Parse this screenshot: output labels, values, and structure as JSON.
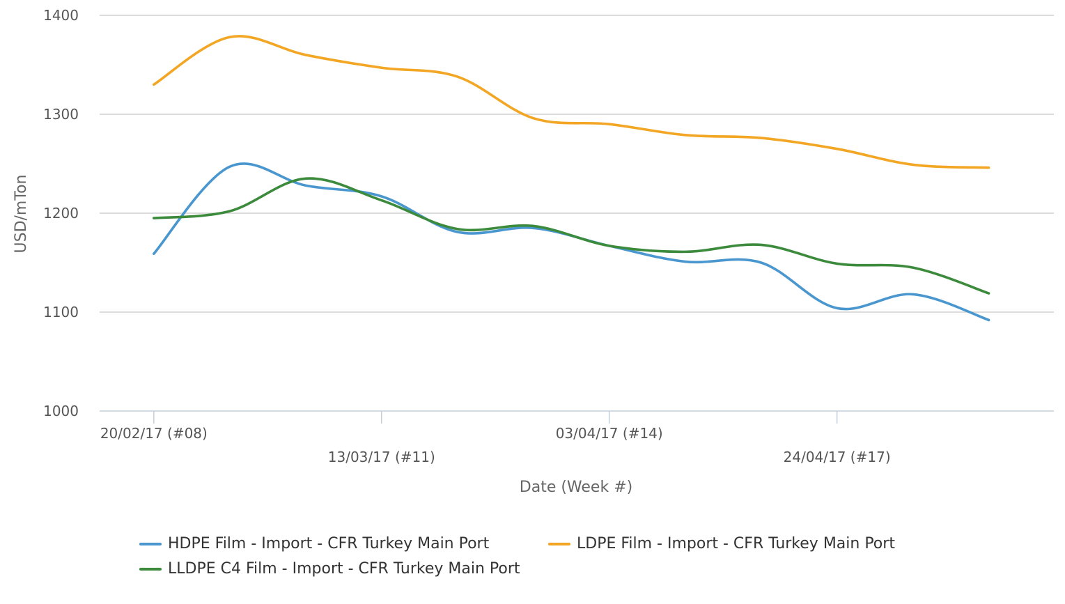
{
  "chart_data": {
    "type": "line",
    "title": "",
    "xlabel": "Date (Week #)",
    "ylabel": "USD/mTon",
    "ylim": [
      1000,
      1400
    ],
    "yticks": [
      "1000",
      "1100",
      "1200",
      "1300",
      "1400"
    ],
    "xlim": [
      "2017-02-15",
      "2017-05-14"
    ],
    "grid": true,
    "legend_position": "bottom",
    "x": [
      "2017-02-20",
      "2017-02-27",
      "2017-03-06",
      "2017-03-13",
      "2017-03-20",
      "2017-03-27",
      "2017-04-03",
      "2017-04-10",
      "2017-04-17",
      "2017-04-24",
      "2017-05-01",
      "2017-05-08"
    ],
    "xticks": [
      {
        "date": "2017-02-20",
        "label": "20/02/17 (#08)"
      },
      {
        "date": "2017-03-13",
        "label": "13/03/17 (#11)"
      },
      {
        "date": "2017-04-03",
        "label": "03/04/17 (#14)"
      },
      {
        "date": "2017-04-24",
        "label": "24/04/17 (#17)"
      }
    ],
    "series": [
      {
        "name": "HDPE Film - Import - CFR Turkey Main Port",
        "color": "#4a97cf",
        "values": [
          1159,
          1247,
          1228,
          1217,
          1181,
          1185,
          1167,
          1151,
          1150,
          1104,
          1118,
          1092
        ]
      },
      {
        "name": "LDPE Film - Import - CFR Turkey Main Port",
        "color": "#f2a623",
        "values": [
          1330,
          1378,
          1360,
          1347,
          1338,
          1296,
          1290,
          1279,
          1276,
          1265,
          1249,
          1246
        ]
      },
      {
        "name": "LLDPE C4 Film - Import - CFR Turkey Main Port",
        "color": "#3c8a3c",
        "values": [
          1195,
          1202,
          1235,
          1213,
          1184,
          1187,
          1167,
          1161,
          1168,
          1149,
          1145,
          1119
        ]
      }
    ]
  }
}
